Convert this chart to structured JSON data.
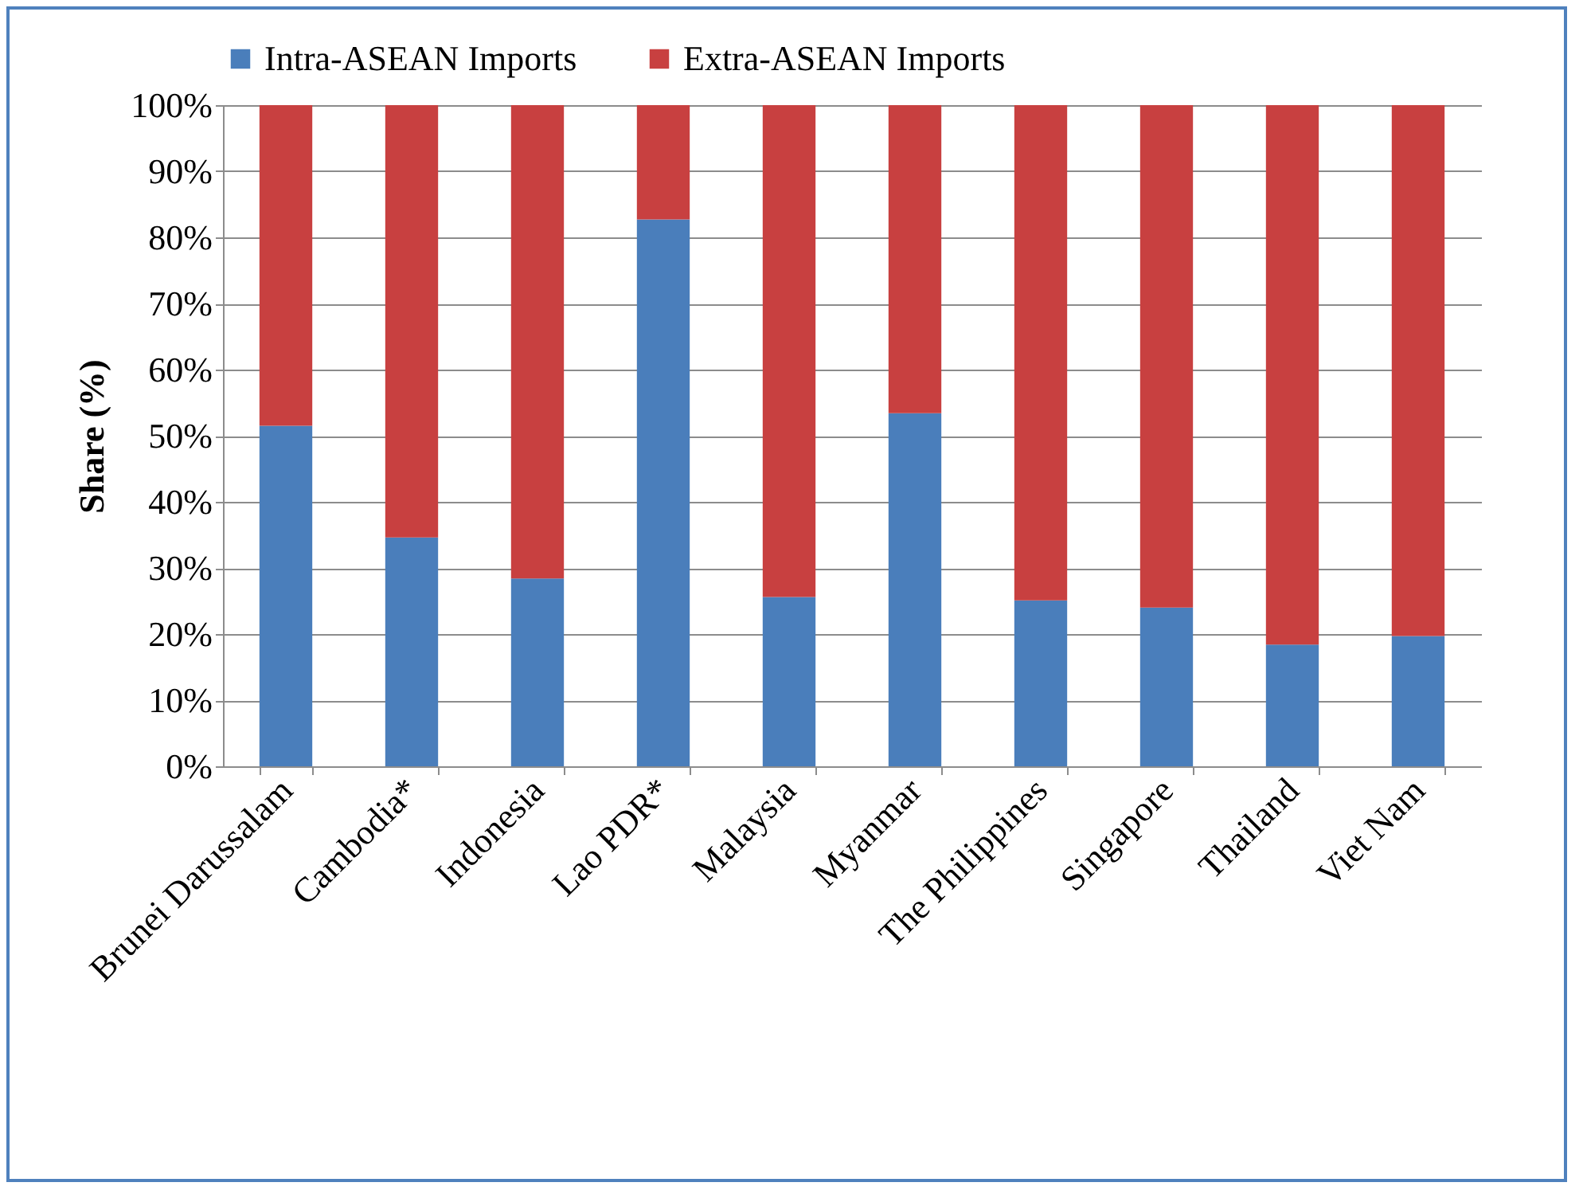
{
  "chart_data": {
    "type": "bar",
    "stacked": true,
    "ylabel": "Share (%)",
    "categories": [
      "Brunei Darussalam",
      "Cambodia*",
      "Indonesia",
      "Lao PDR*",
      "Malaysia",
      "Myanmar",
      "The Philippines",
      "Singapore",
      "Thailand",
      "Viet Nam"
    ],
    "series": [
      {
        "name": "Intra-ASEAN Imports",
        "color": "#4a7ebb",
        "values": [
          51.5,
          34.6,
          28.4,
          82.7,
          25.6,
          53.4,
          25.1,
          24.0,
          18.4,
          19.7
        ]
      },
      {
        "name": "Extra-ASEAN Imports",
        "color": "#c84040",
        "values": [
          48.5,
          65.4,
          71.6,
          17.3,
          74.4,
          46.6,
          74.9,
          76.0,
          81.6,
          80.3
        ]
      }
    ],
    "ylim": [
      0,
      100
    ],
    "yticks": [
      {
        "value": 0,
        "label": "0%"
      },
      {
        "value": 10,
        "label": "10%"
      },
      {
        "value": 20,
        "label": "20%"
      },
      {
        "value": 30,
        "label": "30%"
      },
      {
        "value": 40,
        "label": "40%"
      },
      {
        "value": 50,
        "label": "50%"
      },
      {
        "value": 60,
        "label": "60%"
      },
      {
        "value": 70,
        "label": "70%"
      },
      {
        "value": 80,
        "label": "80%"
      },
      {
        "value": 90,
        "label": "90%"
      },
      {
        "value": 100,
        "label": "100%"
      }
    ],
    "grid": "y",
    "legend": "top"
  }
}
